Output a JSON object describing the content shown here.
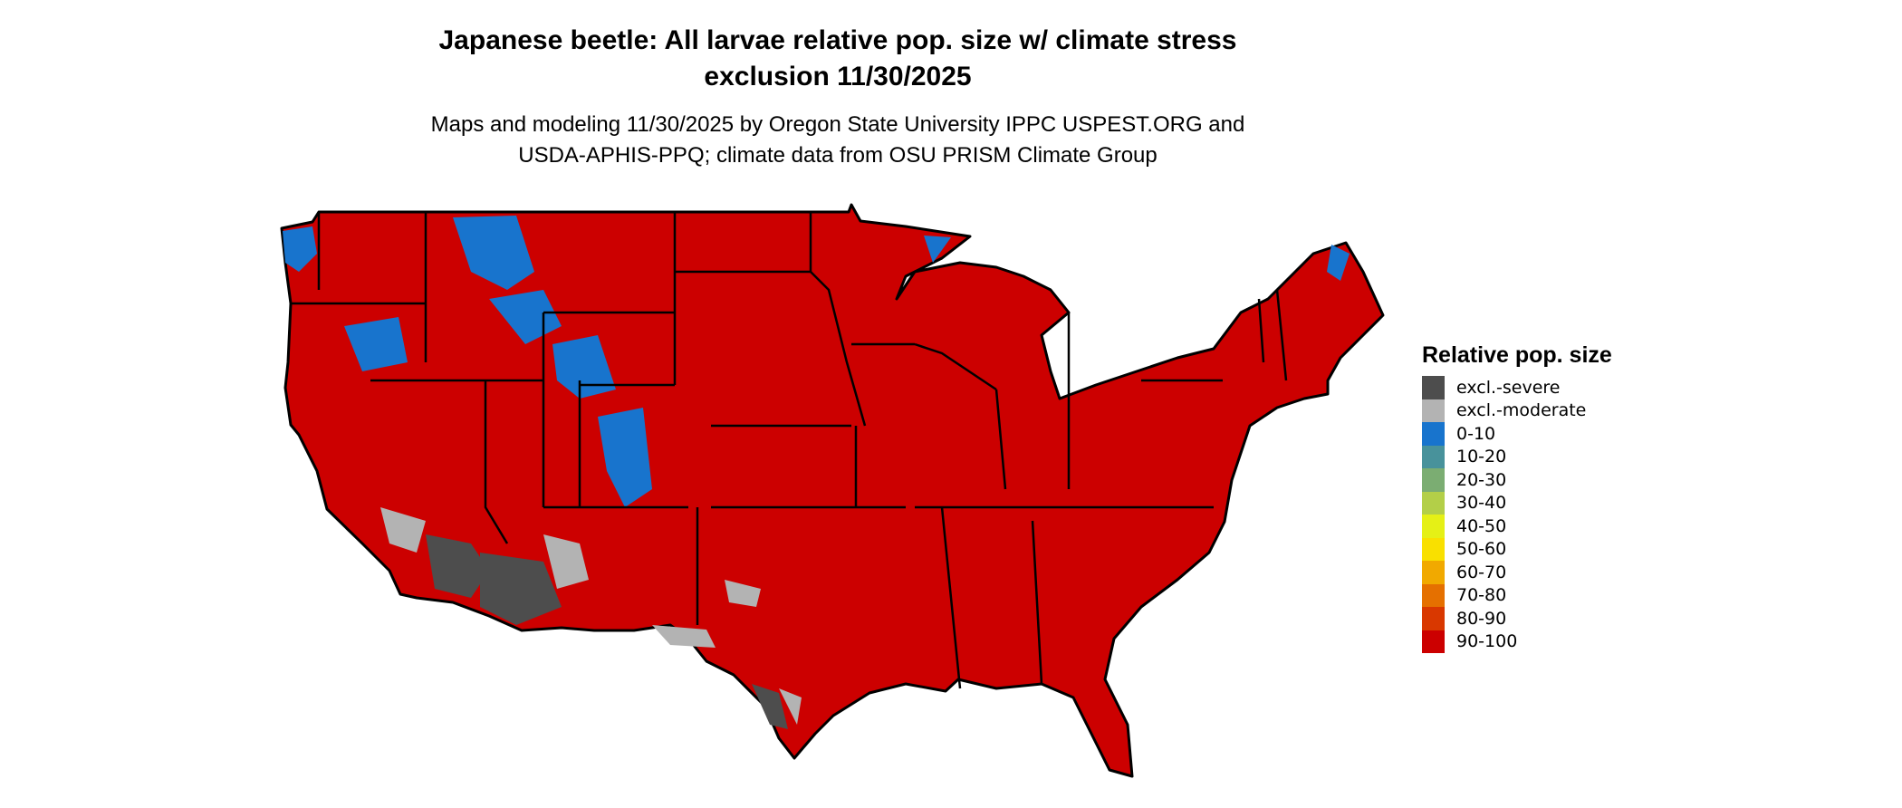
{
  "title_line1": "Japanese beetle: All larvae relative pop. size w/ climate stress",
  "title_line2": "exclusion 11/30/2025",
  "subtitle_line1": "Maps and modeling 11/30/2025 by Oregon State University IPPC USPEST.ORG and",
  "subtitle_line2": "USDA-APHIS-PPQ; climate data from OSU PRISM Climate Group",
  "legend": {
    "title": "Relative pop. size",
    "items": [
      {
        "label": "excl.-severe",
        "color": "#4d4d4d"
      },
      {
        "label": "excl.-moderate",
        "color": "#b3b3b3"
      },
      {
        "label": "0-10",
        "color": "#1874cd"
      },
      {
        "label": "10-20",
        "color": "#48929b"
      },
      {
        "label": "20-30",
        "color": "#7bad72"
      },
      {
        "label": "30-40",
        "color": "#b3cf48"
      },
      {
        "label": "40-50",
        "color": "#e5f016"
      },
      {
        "label": "50-60",
        "color": "#f9e000"
      },
      {
        "label": "60-70",
        "color": "#f1a900"
      },
      {
        "label": "70-80",
        "color": "#e57000"
      },
      {
        "label": "80-90",
        "color": "#d93800"
      },
      {
        "label": "90-100",
        "color": "#cc0000"
      }
    ]
  },
  "map": {
    "base_color": "#cc0000",
    "border_color": "#000000",
    "region": "Contiguous United States"
  }
}
